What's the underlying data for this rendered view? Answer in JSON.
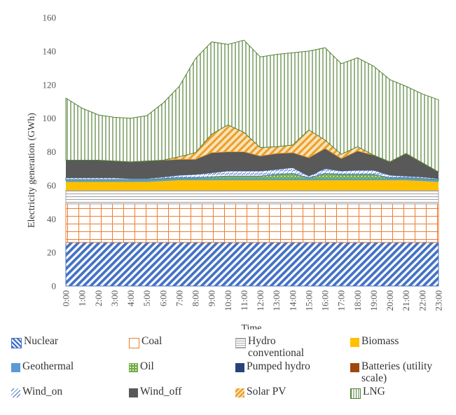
{
  "chart_data": {
    "type": "area",
    "stacked": true,
    "title": "",
    "xlabel": "Time",
    "ylabel": "Electricity generation (GWh)",
    "ylim": [
      0,
      160
    ],
    "yticks": [
      "0",
      "20",
      "40",
      "60",
      "80",
      "100",
      "120",
      "140",
      "160"
    ],
    "grid": false,
    "legend_position": "bottom",
    "categories": [
      "0:00",
      "1:00",
      "2:00",
      "3:00",
      "4:00",
      "5:00",
      "6:00",
      "7:00",
      "8:00",
      "9:00",
      "10:00",
      "11:00",
      "12:00",
      "13:00",
      "14:00",
      "15:00",
      "16:00",
      "17:00",
      "18:00",
      "19:00",
      "20:00",
      "21:00",
      "22:00",
      "23:00"
    ],
    "series": [
      {
        "name": "Nuclear",
        "color": "#4472C4",
        "pattern": "diag-stripes",
        "values": [
          26,
          26,
          26,
          26,
          26,
          26,
          26,
          26,
          26,
          26,
          26,
          26,
          26,
          26,
          26,
          26,
          26,
          26,
          26,
          26,
          26,
          26,
          26,
          26
        ]
      },
      {
        "name": "Coal",
        "color": "#ED7D31",
        "pattern": "grid",
        "values": [
          23,
          23,
          23,
          23,
          23,
          23,
          23,
          23,
          23,
          23,
          23,
          23,
          23,
          23,
          23,
          23,
          23,
          23,
          23,
          23,
          23,
          23,
          23,
          23
        ]
      },
      {
        "name": "Hydro conventional",
        "color": "#A5A5A5",
        "pattern": "horizontal-lines",
        "values": [
          8,
          8,
          8,
          8,
          8,
          8,
          8,
          8,
          8,
          8,
          8,
          8,
          8,
          8,
          8,
          8,
          8,
          8,
          8,
          8,
          8,
          8,
          8,
          8
        ]
      },
      {
        "name": "Biomass",
        "color": "#FFC000",
        "pattern": "solid",
        "values": [
          5,
          5,
          5,
          5,
          5,
          5,
          5.5,
          6,
          6,
          6,
          6,
          6,
          6,
          6,
          6,
          6,
          6,
          6,
          6,
          6,
          6,
          6,
          5.5,
          5
        ]
      },
      {
        "name": "Geothermal",
        "color": "#5B9BD5",
        "pattern": "solid",
        "values": [
          1,
          1,
          1,
          1,
          1,
          1,
          1,
          1,
          1,
          1,
          1,
          1,
          1,
          1,
          1,
          1,
          1,
          1,
          1,
          1,
          1,
          1,
          1,
          1
        ]
      },
      {
        "name": "Oil",
        "color": "#70AD47",
        "pattern": "dots",
        "values": [
          0.5,
          0.5,
          0.5,
          0.5,
          0.5,
          0.5,
          0.5,
          0.5,
          0.5,
          1,
          1.5,
          1.5,
          1.5,
          2.5,
          3,
          0.5,
          3,
          2.5,
          2.5,
          2.5,
          0.5,
          0.5,
          0.5,
          0.5
        ]
      },
      {
        "name": "Pumped hydro",
        "color": "#264478",
        "pattern": "solid",
        "values": [
          0,
          0,
          0,
          0,
          0,
          0,
          0,
          0,
          0,
          0,
          0,
          0,
          0,
          0,
          0,
          0,
          0,
          0,
          0,
          0,
          0,
          0,
          0,
          0
        ]
      },
      {
        "name": "Batteries (utility scale)",
        "color": "#9E480E",
        "pattern": "solid",
        "values": [
          0,
          0,
          0,
          0,
          0,
          0,
          0,
          0,
          0,
          0,
          0,
          0,
          0,
          0,
          0,
          0,
          0,
          0,
          0,
          0,
          0,
          0,
          0,
          0
        ]
      },
      {
        "name": "Wind_on",
        "color": "#4472C4",
        "pattern": "wind",
        "values": [
          1,
          1,
          1,
          1,
          0.5,
          0.5,
          1,
          1.5,
          2,
          2.5,
          3,
          3,
          3,
          3,
          3.5,
          1,
          3,
          2,
          2.5,
          2.5,
          1.5,
          1,
          1,
          0.5
        ]
      },
      {
        "name": "Wind_off",
        "color": "#595959",
        "pattern": "solid",
        "values": [
          10.5,
          10.5,
          10.5,
          10,
          10,
          10.5,
          10,
          9.5,
          9,
          12,
          11.5,
          11.5,
          9,
          9.5,
          9,
          11,
          12,
          7.5,
          11.5,
          9,
          8,
          13.5,
          8.5,
          4
        ]
      },
      {
        "name": "Solar PV",
        "color": "#ED9E2A",
        "pattern": "diag-dashes",
        "values": [
          0,
          0,
          0,
          0,
          0,
          0,
          0,
          1.5,
          4,
          11,
          16,
          11.5,
          5,
          4,
          4.5,
          16.5,
          5,
          2.5,
          2.5,
          0,
          0,
          0,
          0,
          0
        ]
      },
      {
        "name": "LNG",
        "color": "#548235",
        "pattern": "vertical-lines",
        "values": [
          37,
          31,
          27,
          26,
          26,
          27,
          34,
          42,
          56,
          55,
          48,
          55,
          54,
          55,
          55,
          47,
          55,
          54,
          53,
          53,
          49,
          40,
          41,
          43
        ]
      }
    ]
  }
}
